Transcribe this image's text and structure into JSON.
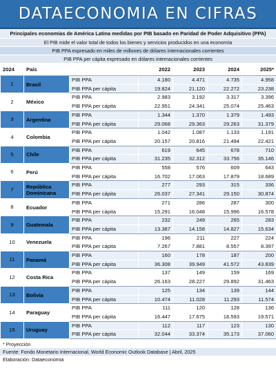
{
  "banner": {
    "title": "DATAECONOMIA EN CIFRAS"
  },
  "subtitles": [
    "Principales economías de América Latina medidas por PIB basado en Paridad de Poder Adquisitivo (PPA)",
    "El PIB mide el valor total de todos los bienes y servicios producidos en una economía",
    "PIB PPA expresado en miles de millones de dólares internacionales corrientes",
    "PIB PPA per cápita expresado en dólares internacionales corrientes"
  ],
  "table": {
    "headers": [
      "2024",
      "País",
      "",
      "2022",
      "2023",
      "2024",
      "2025*"
    ],
    "indicators": [
      "PIB PPA",
      "PIB PPA per cápita"
    ],
    "rows": [
      {
        "rank": "1",
        "country": "Brasil",
        "ppa": [
          "4.180",
          "4.471",
          "4.735",
          "4.958"
        ],
        "pc": [
          "19.824",
          "21.120",
          "22.272",
          "23.238"
        ]
      },
      {
        "rank": "2",
        "country": "México",
        "ppa": [
          "2.983",
          "3.192",
          "3.317",
          "3.396"
        ],
        "pc": [
          "22.951",
          "24.341",
          "25.074",
          "25.463"
        ]
      },
      {
        "rank": "3",
        "country": "Argentina",
        "ppa": [
          "1.344",
          "1.370",
          "1.379",
          "1.493"
        ],
        "pc": [
          "29.068",
          "29.363",
          "29.263",
          "31.379"
        ]
      },
      {
        "rank": "4",
        "country": "Colombia",
        "ppa": [
          "1.042",
          "1.087",
          "1.133",
          "1.191"
        ],
        "pc": [
          "20.157",
          "20.816",
          "21.494",
          "22.421"
        ]
      },
      {
        "rank": "5",
        "country": "Chile",
        "ppa": [
          "619",
          "645",
          "678",
          "710"
        ],
        "pc": [
          "31.235",
          "32.312",
          "33.756",
          "35.146"
        ]
      },
      {
        "rank": "6",
        "country": "Perú",
        "ppa": [
          "558",
          "576",
          "609",
          "643"
        ],
        "pc": [
          "16.702",
          "17.063",
          "17.879",
          "18.689"
        ]
      },
      {
        "rank": "7",
        "country": "República Dominicana",
        "ppa": [
          "277",
          "293",
          "315",
          "336"
        ],
        "pc": [
          "26.037",
          "27.341",
          "29.150",
          "30.874"
        ]
      },
      {
        "rank": "8",
        "country": "Ecuador",
        "ppa": [
          "271",
          "286",
          "287",
          "300"
        ],
        "pc": [
          "15.291",
          "16.048",
          "15.996",
          "16.578"
        ]
      },
      {
        "rank": "9",
        "country": "Guatemala",
        "ppa": [
          "232",
          "249",
          "265",
          "283"
        ],
        "pc": [
          "13.387",
          "14.158",
          "14.827",
          "15.634"
        ]
      },
      {
        "rank": "10",
        "country": "Venezuela",
        "ppa": [
          "196",
          "211",
          "227",
          "224"
        ],
        "pc": [
          "7.267",
          "7.881",
          "8.557",
          "8.397"
        ]
      },
      {
        "rank": "11",
        "country": "Panamá",
        "ppa": [
          "160",
          "178",
          "187",
          "200"
        ],
        "pc": [
          "36.308",
          "39.949",
          "41.572",
          "43.839"
        ]
      },
      {
        "rank": "12",
        "country": "Costa Rica",
        "ppa": [
          "137",
          "149",
          "159",
          "169"
        ],
        "pc": [
          "26.163",
          "28.227",
          "29.892",
          "31.463"
        ]
      },
      {
        "rank": "13",
        "country": "Bolivia",
        "ppa": [
          "125",
          "134",
          "139",
          "144"
        ],
        "pc": [
          "10.474",
          "11.028",
          "11.293",
          "11.574"
        ]
      },
      {
        "rank": "14",
        "country": "Paraguay",
        "ppa": [
          "111",
          "120",
          "128",
          "136"
        ],
        "pc": [
          "16.447",
          "17.675",
          "18.593",
          "19.571"
        ]
      },
      {
        "rank": "15",
        "country": "Uruguay",
        "ppa": [
          "112",
          "117",
          "123",
          "130"
        ],
        "pc": [
          "32.044",
          "33.374",
          "35.173",
          "37.060"
        ]
      }
    ]
  },
  "notes": {
    "projection": "* Proyección",
    "source": "Fuente: Fondo Monetario Internacional, World Economic Outlook Database | Abril, 2025",
    "credit": "Elaboración: Dataeconomia"
  },
  "colors": {
    "banner": "#2e6fb0",
    "row_accent": "#3d7fc0",
    "row_light": "#e9f0f8"
  }
}
